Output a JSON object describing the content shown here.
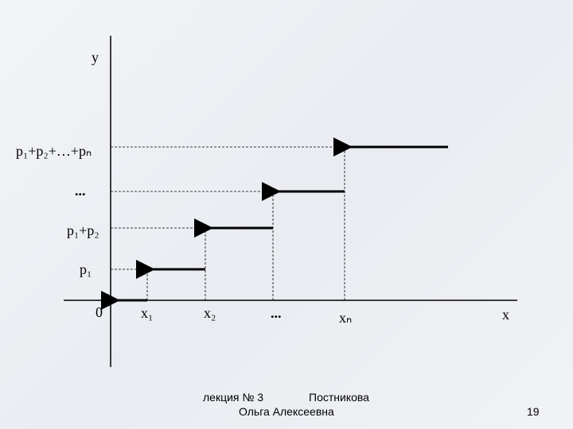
{
  "diagram": {
    "y_axis_label": "y",
    "x_axis_label": "x",
    "y_labels": [
      "p₁+p₂+…+pₙ",
      "...",
      "p₁+p₂",
      "p₁",
      "0"
    ],
    "x_labels": [
      "x₁",
      "x₂",
      "...",
      "xₙ"
    ]
  },
  "footer": {
    "lecture": "лекция № 3",
    "author_surname": "Постникова",
    "author_name": "Ольга Алексеевна",
    "page_number": "19"
  }
}
